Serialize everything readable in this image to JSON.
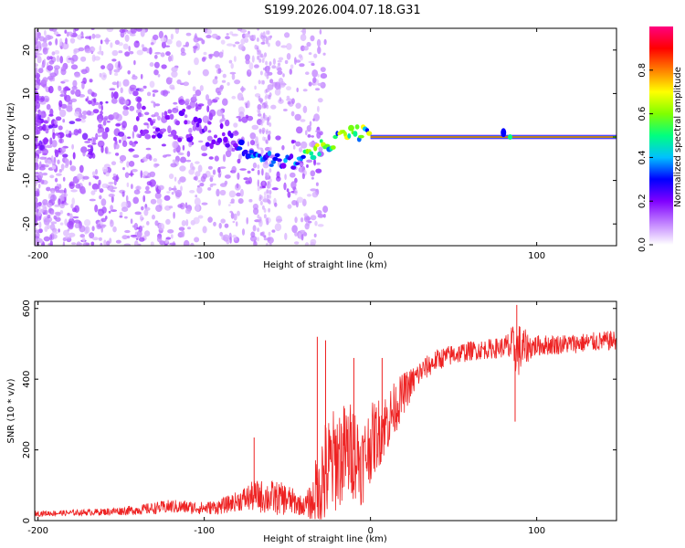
{
  "page_title": "S199.2026.004.07.18.G31",
  "chart_data": [
    {
      "type": "heatmap",
      "title": "S199.2026.004.07.18.G31",
      "xlabel": "Height of straight line (km)",
      "ylabel": "Frequency (Hz)",
      "xlim": [
        -202,
        148
      ],
      "ylim": [
        -25,
        25
      ],
      "x_ticks": [
        "-200",
        "-100",
        "0",
        "100"
      ],
      "x_tick_values": [
        -200,
        -100,
        0,
        100
      ],
      "y_ticks": [
        "-20",
        "-10",
        "0",
        "10",
        "20"
      ],
      "y_tick_values": [
        -20,
        -10,
        0,
        10,
        20
      ],
      "ridge_points": [
        {
          "x": -140,
          "y": 3.5
        },
        {
          "x": -120,
          "y": 3.0
        },
        {
          "x": -100,
          "y": 2.0
        },
        {
          "x": -85,
          "y": -1.0
        },
        {
          "x": -70,
          "y": -4.0
        },
        {
          "x": -55,
          "y": -5.5
        },
        {
          "x": -45,
          "y": -6.0
        },
        {
          "x": -35,
          "y": -3.5
        },
        {
          "x": -25,
          "y": -1.5
        },
        {
          "x": -15,
          "y": 0.5
        },
        {
          "x": -5,
          "y": 1.0
        },
        {
          "x": 0,
          "y": 0.0
        },
        {
          "x": 148,
          "y": 0.0
        }
      ],
      "colorbar": {
        "label": "Normalized spectral amplitude",
        "ticks": [
          "0.0",
          "0.2",
          "0.4",
          "0.6",
          "0.8"
        ],
        "tick_values": [
          0.0,
          0.2,
          0.4,
          0.6,
          0.8
        ],
        "range": [
          0,
          1
        ],
        "colors": [
          "#ffffff",
          "#c080ff",
          "#8000ff",
          "#0000ff",
          "#00c0ff",
          "#00ff80",
          "#80ff00",
          "#ffff00",
          "#ff8000",
          "#ff0000",
          "#ff0080"
        ]
      }
    },
    {
      "type": "line",
      "xlabel": "Height of straight line (km)",
      "ylabel": "SNR (10 * v/v)",
      "xlim": [
        -202,
        148
      ],
      "ylim": [
        0,
        620
      ],
      "x_ticks": [
        "-200",
        "-100",
        "0",
        "100"
      ],
      "x_tick_values": [
        -200,
        -100,
        0,
        100
      ],
      "y_ticks": [
        "0",
        "200",
        "400",
        "600"
      ],
      "y_tick_values": [
        0,
        200,
        400,
        600
      ],
      "series": [
        {
          "name": "SNR",
          "color": "#ee2222",
          "envelope_x": [
            -202,
            -180,
            -160,
            -140,
            -120,
            -100,
            -90,
            -80,
            -70,
            -60,
            -50,
            -40,
            -35,
            -30,
            -20,
            -10,
            -5,
            0,
            10,
            20,
            25,
            30,
            40,
            50,
            60,
            70,
            80,
            85,
            90,
            95,
            100,
            120,
            148
          ],
          "envelope_mean": [
            20,
            22,
            25,
            30,
            40,
            35,
            40,
            55,
            70,
            65,
            60,
            40,
            55,
            110,
            180,
            200,
            160,
            220,
            280,
            360,
            390,
            420,
            455,
            470,
            480,
            485,
            490,
            490,
            480,
            490,
            495,
            500,
            510
          ],
          "envelope_amp": [
            8,
            8,
            10,
            14,
            20,
            18,
            22,
            28,
            45,
            50,
            45,
            25,
            60,
            160,
            150,
            140,
            120,
            110,
            90,
            60,
            45,
            35,
            30,
            30,
            28,
            28,
            30,
            60,
            80,
            40,
            30,
            28,
            28
          ]
        }
      ],
      "spikes": [
        {
          "x": -70,
          "y": 235
        },
        {
          "x": -32,
          "y": 520
        },
        {
          "x": -27,
          "y": 510
        },
        {
          "x": -10,
          "y": 460
        },
        {
          "x": 7,
          "y": 460
        },
        {
          "x": 88,
          "y": 610
        },
        {
          "x": 87,
          "y": 280
        }
      ]
    }
  ]
}
